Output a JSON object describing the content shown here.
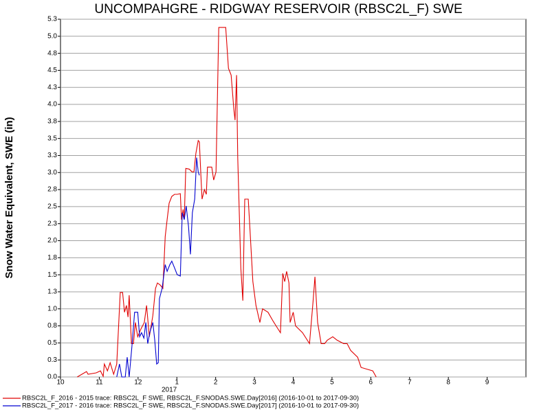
{
  "chart_data": {
    "type": "line",
    "title": "UNCOMPAHGRE - RIDGWAY RESERVOIR (RBSC2L_F) SWE",
    "y_label": "Snow Water Equivalent, SWE (in)",
    "annotations": [
      {
        "x": 3,
        "text": "2017"
      }
    ],
    "xlim": [
      0,
      12
    ],
    "xticks": [
      {
        "value": 0,
        "label": "10"
      },
      {
        "value": 1,
        "label": "11"
      },
      {
        "value": 2,
        "label": "12"
      },
      {
        "value": 3,
        "label": "1"
      },
      {
        "value": 4,
        "label": "2"
      },
      {
        "value": 5,
        "label": "3"
      },
      {
        "value": 6,
        "label": "4"
      },
      {
        "value": 7,
        "label": "5"
      },
      {
        "value": 8,
        "label": "6"
      },
      {
        "value": 9,
        "label": "7"
      },
      {
        "value": 10,
        "label": "8"
      },
      {
        "value": 11,
        "label": "9"
      }
    ],
    "ylim": [
      0,
      5.25
    ],
    "yticks": [
      {
        "value": 0,
        "label": "0.0"
      },
      {
        "value": 0.25,
        "label": "0.3"
      },
      {
        "value": 0.5,
        "label": "0.5"
      },
      {
        "value": 0.75,
        "label": "0.8"
      },
      {
        "value": 1,
        "label": "1.0"
      },
      {
        "value": 1.25,
        "label": "1.3"
      },
      {
        "value": 1.5,
        "label": "1.5"
      },
      {
        "value": 1.75,
        "label": "1.8"
      },
      {
        "value": 2,
        "label": "2.0"
      },
      {
        "value": 2.25,
        "label": "2.3"
      },
      {
        "value": 2.5,
        "label": "2.5"
      },
      {
        "value": 2.75,
        "label": "2.8"
      },
      {
        "value": 3,
        "label": "3.0"
      },
      {
        "value": 3.25,
        "label": "3.3"
      },
      {
        "value": 3.5,
        "label": "3.5"
      },
      {
        "value": 3.75,
        "label": "3.8"
      },
      {
        "value": 4,
        "label": "4.0"
      },
      {
        "value": 4.25,
        "label": "4.3"
      },
      {
        "value": 4.5,
        "label": "4.5"
      },
      {
        "value": 4.75,
        "label": "4.8"
      },
      {
        "value": 5,
        "label": "5.0"
      },
      {
        "value": 5.25,
        "label": "5.3"
      }
    ],
    "grid": true,
    "legend": "bottom",
    "series": [
      {
        "name": "RBSC2L_F_2016 - 2015 trace: RBSC2L_F SWE, RBSC2L_F.SNODAS.SWE.Day[2016] (2016-10-01 to 2017-09-30)",
        "color": "#e00000",
        "x": [
          0.43,
          0.67,
          0.71,
          0.92,
          1.03,
          1.1,
          1.13,
          1.21,
          1.28,
          1.37,
          1.45,
          1.54,
          1.6,
          1.65,
          1.7,
          1.74,
          1.77,
          1.83,
          1.88,
          1.93,
          1.99,
          2.07,
          2.16,
          2.22,
          2.29,
          2.38,
          2.45,
          2.5,
          2.57,
          2.64,
          2.7,
          2.75,
          2.8,
          2.87,
          2.94,
          3.01,
          3.09,
          3.12,
          3.16,
          3.19,
          3.23,
          3.32,
          3.39,
          3.44,
          3.49,
          3.55,
          3.58,
          3.62,
          3.65,
          3.71,
          3.76,
          3.79,
          3.9,
          3.95,
          4.01,
          4.08,
          4.26,
          4.33,
          4.4,
          4.47,
          4.5,
          4.54,
          4.57,
          4.65,
          4.7,
          4.75,
          4.84,
          4.89,
          4.96,
          5.04,
          5.14,
          5.21,
          5.35,
          5.48,
          5.59,
          5.67,
          5.73,
          5.78,
          5.83,
          5.89,
          5.92,
          6.0,
          6.06,
          6.24,
          6.42,
          6.51,
          6.56,
          6.63,
          6.72,
          6.81,
          6.88,
          7.02,
          7.13,
          7.3,
          7.39,
          7.48,
          7.66,
          7.75,
          7.93,
          8.05,
          8.14
        ],
        "values": [
          0,
          0.08,
          0.04,
          0.06,
          0.09,
          0.01,
          0.19,
          0.09,
          0.21,
          0.04,
          0.19,
          1.24,
          1.24,
          0.95,
          1.05,
          0.88,
          1.2,
          0.49,
          0.49,
          0.8,
          0.59,
          0.7,
          0.8,
          1.05,
          0.59,
          0.9,
          1.3,
          1.38,
          1.35,
          1.3,
          2.06,
          2.31,
          2.55,
          2.65,
          2.68,
          2.68,
          2.69,
          2.31,
          2.46,
          2.31,
          3.06,
          3.05,
          3.01,
          3.01,
          3.28,
          3.47,
          3.45,
          2.96,
          2.61,
          2.75,
          2.68,
          3.08,
          3.08,
          2.89,
          3.01,
          5.13,
          5.13,
          4.53,
          4.43,
          3.92,
          3.77,
          4.43,
          3.22,
          1.6,
          1.12,
          2.61,
          2.61,
          2.11,
          1.4,
          1.05,
          0.8,
          1.0,
          0.95,
          0.82,
          0.72,
          0.65,
          1.52,
          1.4,
          1.55,
          1.38,
          0.8,
          0.95,
          0.75,
          0.65,
          0.49,
          1.1,
          1.47,
          0.8,
          0.49,
          0.49,
          0.54,
          0.59,
          0.54,
          0.49,
          0.49,
          0.39,
          0.29,
          0.14,
          0.11,
          0.09,
          0
        ]
      },
      {
        "name": "RBSC2L_F_2017 - 2016 trace: RBSC2L_F SWE, RBSC2L_F.SNODAS.SWE.Day[2017] (2016-10-01 to 2017-09-30)",
        "color": "#0000d0",
        "x": [
          1.45,
          1.52,
          1.58,
          1.67,
          1.72,
          1.77,
          1.84,
          1.91,
          1.99,
          2.04,
          2.09,
          2.15,
          2.2,
          2.25,
          2.3,
          2.38,
          2.43,
          2.48,
          2.52,
          2.55,
          2.62,
          2.7,
          2.75,
          2.82,
          2.87,
          2.94,
          3.01,
          3.09,
          3.14,
          3.19,
          3.24,
          3.3,
          3.35,
          3.4,
          3.46,
          3.51,
          3.55,
          3.58
        ],
        "values": [
          0,
          0.19,
          0,
          0,
          0.29,
          0,
          0.44,
          0.95,
          0.95,
          0.59,
          0.65,
          0.57,
          0.8,
          0.49,
          0.65,
          0.8,
          0.54,
          0.19,
          0.21,
          1.15,
          1.3,
          1.65,
          1.55,
          1.65,
          1.7,
          1.6,
          1.5,
          1.48,
          2.41,
          2.31,
          2.51,
          2.21,
          1.8,
          2.41,
          2.61,
          3.22,
          3.01,
          2.96
        ]
      }
    ]
  }
}
